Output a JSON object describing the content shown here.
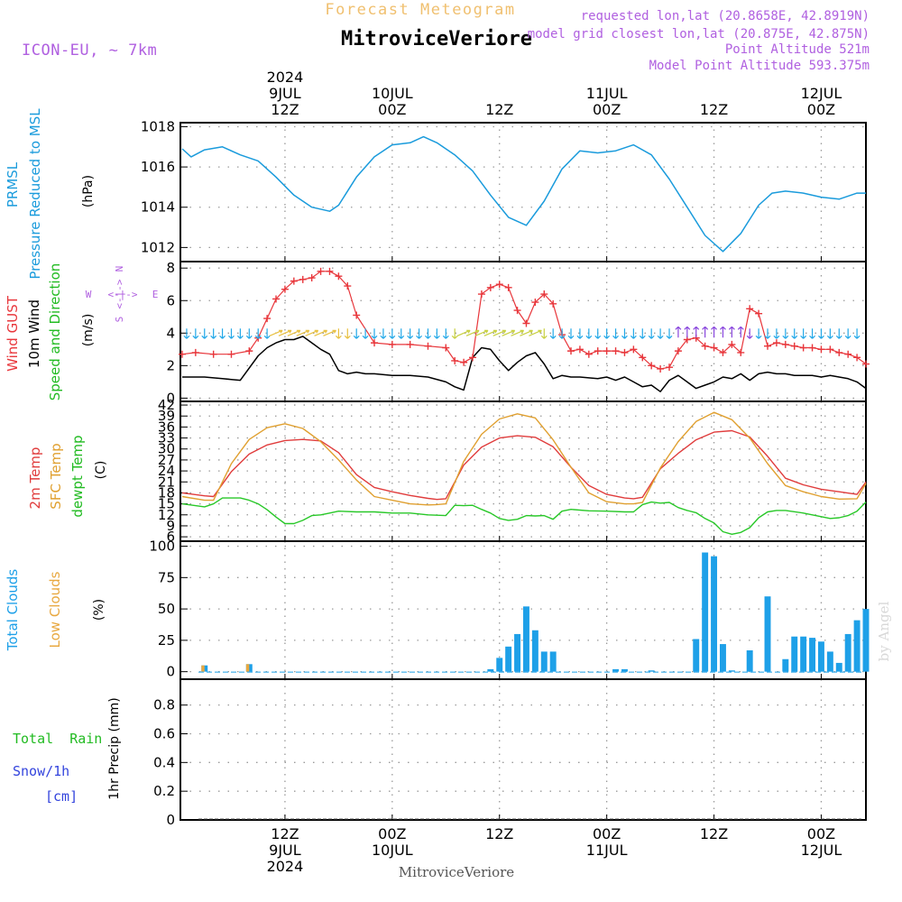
{
  "header": {
    "forecast_label": "Forecast Meteogram",
    "location": "MitroviceVeriore",
    "model": "ICON-EU, ~ 7km",
    "requested": "requested lon,lat (20.8658E, 42.8919N)",
    "closest": "model grid closest lon,lat (20.875E, 42.875N)",
    "point_altitude": "Point Altitude 521m",
    "model_altitude": "Model Point Altitude 593.375m",
    "watermark": "by Angel",
    "footer_location": "MitroviceVeriore"
  },
  "time_axis": {
    "top": [
      {
        "hour": 12,
        "lines": [
          "2024",
          "9JUL",
          "12Z"
        ]
      },
      {
        "hour": 24,
        "lines": [
          "10JUL",
          "00Z"
        ]
      },
      {
        "hour": 36,
        "lines": [
          "12Z"
        ]
      },
      {
        "hour": 48,
        "lines": [
          "11JUL",
          "00Z"
        ]
      },
      {
        "hour": 60,
        "lines": [
          "12Z"
        ]
      },
      {
        "hour": 72,
        "lines": [
          "12JUL",
          "00Z"
        ]
      }
    ],
    "bottom": [
      {
        "hour": 12,
        "lines": [
          "12Z",
          "9JUL",
          "2024"
        ]
      },
      {
        "hour": 24,
        "lines": [
          "00Z",
          "10JUL"
        ]
      },
      {
        "hour": 36,
        "lines": [
          "12Z"
        ]
      },
      {
        "hour": 48,
        "lines": [
          "00Z",
          "11JUL"
        ]
      },
      {
        "hour": 60,
        "lines": [
          "12Z"
        ]
      },
      {
        "hour": 72,
        "lines": [
          "00Z",
          "12JUL"
        ]
      }
    ],
    "x_range": [
      0.3,
      77
    ]
  },
  "panel_labels": {
    "pressure": [
      "PRMSL",
      "Pressure Reduced to MSL"
    ],
    "pressure_unit": "(hPa)",
    "wind_gust": "Wind GUST",
    "wind_10m": "10m Wind",
    "wind_dir": "Speed and Direction",
    "wind_unit": "(m/s)",
    "compass_n": "N",
    "compass_s": "S",
    "compass_w": "W",
    "compass_e": "E",
    "compass_inner_ns": "<-|->",
    "compass_inner_we": "<-|->",
    "temp_2m": "2m Temp",
    "temp_sfc": "SFC Temp",
    "temp_dew": "dewpt Temp",
    "temp_unit": "(C)",
    "cloud_total": "Total Clouds",
    "cloud_low": "Low Clouds",
    "cloud_unit": "(%)",
    "precip_rain": "Total  Rain",
    "precip_snow": "Snow/1h",
    "precip_snow_unit": "[cm]",
    "precip_unit": "1hr Precip (mm)"
  },
  "colors": {
    "pressure": "#1a9bdc",
    "gust": "#e8363b",
    "wind": "#000000",
    "temp2m": "#e03c3c",
    "sfc": "#e0a030",
    "dew": "#28c828",
    "cloud_total": "#1ea0e8",
    "cloud_low": "#e8a840",
    "rain": "#22bb22",
    "snow": "#3344dd",
    "header_orange": "#f0c070",
    "header_purple": "#b060e0",
    "grid": "#9a9a9a"
  },
  "chart_data": [
    {
      "type": "line",
      "title": "PRMSL Pressure Reduced to MSL",
      "ylabel": "(hPa)",
      "ylim": [
        1011.3,
        1018.2
      ],
      "yticks": [
        1012,
        1014,
        1016,
        1018
      ],
      "series": [
        {
          "name": "PRMSL",
          "x": [
            0.5,
            1.5,
            3,
            5,
            7,
            9,
            11,
            13,
            15,
            17,
            18,
            20,
            22,
            24,
            26,
            27.5,
            29,
            31,
            33,
            35,
            37,
            39,
            41,
            43,
            45,
            47,
            49,
            51,
            53,
            55,
            57,
            59,
            61,
            63,
            65,
            66.5,
            68,
            70,
            72,
            74,
            76,
            77
          ],
          "values": [
            1016.9,
            1016.5,
            1016.85,
            1017.0,
            1016.6,
            1016.3,
            1015.5,
            1014.6,
            1014.0,
            1013.8,
            1014.1,
            1015.5,
            1016.5,
            1017.1,
            1017.2,
            1017.5,
            1017.2,
            1016.6,
            1015.8,
            1014.6,
            1013.5,
            1013.1,
            1014.3,
            1015.9,
            1016.8,
            1016.7,
            1016.8,
            1017.1,
            1016.6,
            1015.4,
            1014.0,
            1012.6,
            1011.8,
            1012.7,
            1014.1,
            1014.7,
            1014.8,
            1014.7,
            1014.5,
            1014.4,
            1014.7,
            1014.7
          ]
        }
      ]
    },
    {
      "type": "line",
      "title": "Wind GUST / 10m Wind Speed and Direction",
      "ylabel": "(m/s)",
      "ylim": [
        -0.2,
        8.4
      ],
      "yticks": [
        0,
        2,
        4,
        6,
        8
      ],
      "series": [
        {
          "name": "Wind GUST",
          "x": [
            0.5,
            2,
            4,
            6,
            8,
            9,
            10,
            11,
            12,
            13,
            14,
            15,
            16,
            17,
            18,
            19,
            20,
            22,
            24,
            26,
            28,
            30,
            31,
            32,
            33,
            34,
            35,
            36,
            37,
            38,
            39,
            40,
            41,
            42,
            43,
            44,
            45,
            46,
            47,
            48,
            49,
            50,
            51,
            52,
            53,
            54,
            55,
            56,
            57,
            58,
            59,
            60,
            61,
            62,
            63,
            64,
            65,
            66,
            67,
            68,
            69,
            70,
            71,
            72,
            73,
            74,
            75,
            76,
            77
          ],
          "values": [
            2.7,
            2.8,
            2.7,
            2.7,
            2.9,
            3.7,
            4.9,
            6.1,
            6.7,
            7.2,
            7.3,
            7.4,
            7.8,
            7.8,
            7.5,
            6.9,
            5.1,
            3.4,
            3.3,
            3.3,
            3.2,
            3.1,
            2.3,
            2.2,
            2.5,
            6.4,
            6.8,
            7.0,
            6.8,
            5.4,
            4.6,
            5.9,
            6.4,
            5.8,
            3.9,
            2.9,
            3.0,
            2.7,
            2.9,
            2.9,
            2.9,
            2.8,
            3.0,
            2.5,
            2.0,
            1.8,
            1.9,
            2.9,
            3.6,
            3.7,
            3.2,
            3.1,
            2.8,
            3.3,
            2.8,
            5.5,
            5.2,
            3.2,
            3.4,
            3.3,
            3.2,
            3.1,
            3.1,
            3.0,
            3.0,
            2.8,
            2.7,
            2.5,
            2.1
          ]
        },
        {
          "name": "10m Wind",
          "x": [
            0.5,
            3,
            5,
            7,
            9,
            10,
            11,
            12,
            13,
            14,
            15,
            16,
            17,
            18,
            19,
            20,
            21,
            22,
            24,
            26,
            28,
            30,
            31,
            32,
            33,
            34,
            35,
            36,
            37,
            38,
            39,
            40,
            41,
            42,
            43,
            44,
            45,
            47,
            48,
            49,
            50,
            51,
            52,
            53,
            54,
            55,
            56,
            57,
            58,
            59,
            60,
            61,
            62,
            63,
            64,
            65,
            66,
            67,
            68,
            69,
            70,
            71,
            72,
            73,
            74,
            75,
            76,
            77
          ],
          "values": [
            1.3,
            1.3,
            1.2,
            1.1,
            2.6,
            3.1,
            3.4,
            3.6,
            3.6,
            3.8,
            3.4,
            3.0,
            2.7,
            1.7,
            1.5,
            1.6,
            1.5,
            1.5,
            1.4,
            1.4,
            1.3,
            1.0,
            0.7,
            0.5,
            2.5,
            3.1,
            3.0,
            2.3,
            1.7,
            2.2,
            2.6,
            2.8,
            2.1,
            1.2,
            1.4,
            1.3,
            1.3,
            1.2,
            1.3,
            1.1,
            1.3,
            1.0,
            0.7,
            0.8,
            0.4,
            1.1,
            1.4,
            1.0,
            0.6,
            0.8,
            1.0,
            1.3,
            1.2,
            1.5,
            1.1,
            1.5,
            1.6,
            1.5,
            1.5,
            1.4,
            1.4,
            1.4,
            1.3,
            1.4,
            1.3,
            1.2,
            1.0,
            0.6
          ]
        }
      ]
    },
    {
      "type": "line",
      "title": "2m Temp / SFC Temp / dewpt Temp",
      "ylabel": "(C)",
      "ylim": [
        4.8,
        43
      ],
      "yticks": [
        6,
        9,
        12,
        15,
        18,
        21,
        24,
        27,
        30,
        33,
        36,
        39,
        42
      ],
      "series": [
        {
          "name": "2m Temp",
          "x": [
            0.5,
            3,
            4,
            6,
            8,
            10,
            12,
            14,
            16,
            18,
            20,
            22,
            24,
            26,
            28,
            29,
            30,
            32,
            34,
            36,
            38,
            40,
            42,
            44,
            46,
            48,
            50,
            51,
            52,
            54,
            56,
            58,
            60,
            62,
            64,
            66,
            68,
            70,
            72,
            74,
            76,
            77
          ],
          "values": [
            18.0,
            17.2,
            17.0,
            23.8,
            28.6,
            31.1,
            32.3,
            32.6,
            32.2,
            29.0,
            23.0,
            19.5,
            18.3,
            17.3,
            16.5,
            16.2,
            16.4,
            25.6,
            30.5,
            33.0,
            33.6,
            33.2,
            30.6,
            25.0,
            20.0,
            17.6,
            16.6,
            16.4,
            16.8,
            24.6,
            28.8,
            32.5,
            34.6,
            35.0,
            33.3,
            28.0,
            22.0,
            20.2,
            19.0,
            18.3,
            17.6,
            21.0
          ]
        },
        {
          "name": "SFC Temp",
          "x": [
            0.5,
            3,
            4,
            6,
            8,
            10,
            12,
            14,
            16,
            18,
            20,
            22,
            24,
            26,
            28,
            29,
            30,
            32,
            34,
            36,
            38,
            40,
            42,
            44,
            46,
            48,
            50,
            51,
            52,
            54,
            56,
            58,
            60,
            62,
            64,
            66,
            68,
            70,
            72,
            74,
            76,
            77
          ],
          "values": [
            17.0,
            16.0,
            16.0,
            26.0,
            32.6,
            35.8,
            36.9,
            35.6,
            32.0,
            27.0,
            21.5,
            17.0,
            16.0,
            15.0,
            14.7,
            14.8,
            15.0,
            26.6,
            34.0,
            38.2,
            39.6,
            38.5,
            32.5,
            25.0,
            18.0,
            15.6,
            15.0,
            15.0,
            15.4,
            24.8,
            32.0,
            37.5,
            40.0,
            38.0,
            33.0,
            26.0,
            20.0,
            18.3,
            17.0,
            16.3,
            16.4,
            20.6
          ]
        },
        {
          "name": "dewpt Temp",
          "x": [
            0.5,
            3,
            4,
            5,
            7,
            8,
            9,
            10,
            11,
            12,
            13,
            14,
            15,
            16,
            17,
            18,
            20,
            22,
            24,
            26,
            28,
            30,
            31,
            32,
            33,
            34,
            35,
            36,
            37,
            38,
            39,
            40,
            41,
            42,
            43,
            44,
            46,
            48,
            50,
            51,
            52,
            53,
            54,
            55,
            56,
            57,
            58,
            59,
            60,
            61,
            62,
            63,
            64,
            65,
            66,
            67,
            68,
            70,
            72,
            73,
            74,
            75,
            76,
            77
          ],
          "values": [
            15.0,
            14.2,
            15.0,
            16.6,
            16.6,
            16.0,
            15.0,
            13.4,
            11.4,
            9.6,
            9.6,
            10.5,
            11.8,
            12.0,
            12.5,
            13.0,
            12.8,
            12.8,
            12.5,
            12.5,
            12.0,
            11.8,
            14.6,
            14.5,
            14.6,
            13.5,
            12.5,
            11.0,
            10.5,
            10.8,
            11.8,
            11.7,
            11.8,
            10.8,
            13.0,
            13.5,
            13.1,
            13.0,
            12.8,
            12.8,
            14.8,
            15.5,
            15.2,
            15.4,
            14.0,
            13.2,
            12.6,
            11.0,
            9.8,
            7.4,
            6.7,
            7.2,
            8.5,
            11.2,
            12.8,
            13.2,
            13.2,
            12.5,
            11.5,
            11.0,
            11.2,
            11.8,
            13.0,
            15.5
          ]
        }
      ]
    },
    {
      "type": "bar",
      "title": "Total Clouds / Low Clouds",
      "ylabel": "(%)",
      "ylim": [
        -6,
        104
      ],
      "yticks": [
        0,
        25,
        50,
        75,
        100
      ],
      "series": [
        {
          "name": "Total Clouds",
          "x": [
            3,
            8,
            35,
            36,
            37,
            38,
            39,
            40,
            41,
            42,
            43,
            49,
            50,
            53,
            56,
            58,
            59,
            60,
            61,
            62,
            63,
            64,
            66,
            68,
            69,
            70,
            71,
            72,
            73,
            74,
            75,
            76,
            77
          ],
          "values": [
            5,
            6,
            2,
            11,
            20,
            30,
            52,
            33,
            16,
            16,
            0,
            2,
            2,
            1,
            0,
            26,
            95,
            92,
            22,
            1,
            0,
            17,
            60,
            10,
            28,
            28,
            27,
            24,
            16,
            7,
            30,
            41,
            50
          ]
        },
        {
          "name": "Low Clouds",
          "x": [
            3,
            8
          ],
          "values": [
            5,
            6
          ]
        }
      ]
    },
    {
      "type": "bar",
      "title": "1hr Precip (mm)",
      "ylabel": "1hr Precip (mm)",
      "ylim": [
        0,
        0.98
      ],
      "yticks": [
        0,
        0.2,
        0.4,
        0.6,
        0.8
      ],
      "ytick_labels": [
        "0",
        "0.2",
        "0.4",
        "0.6",
        "0.8"
      ],
      "series": [
        {
          "name": "Total Rain",
          "x": [],
          "values": []
        },
        {
          "name": "Snow/1h",
          "x": [],
          "values": []
        }
      ]
    }
  ]
}
